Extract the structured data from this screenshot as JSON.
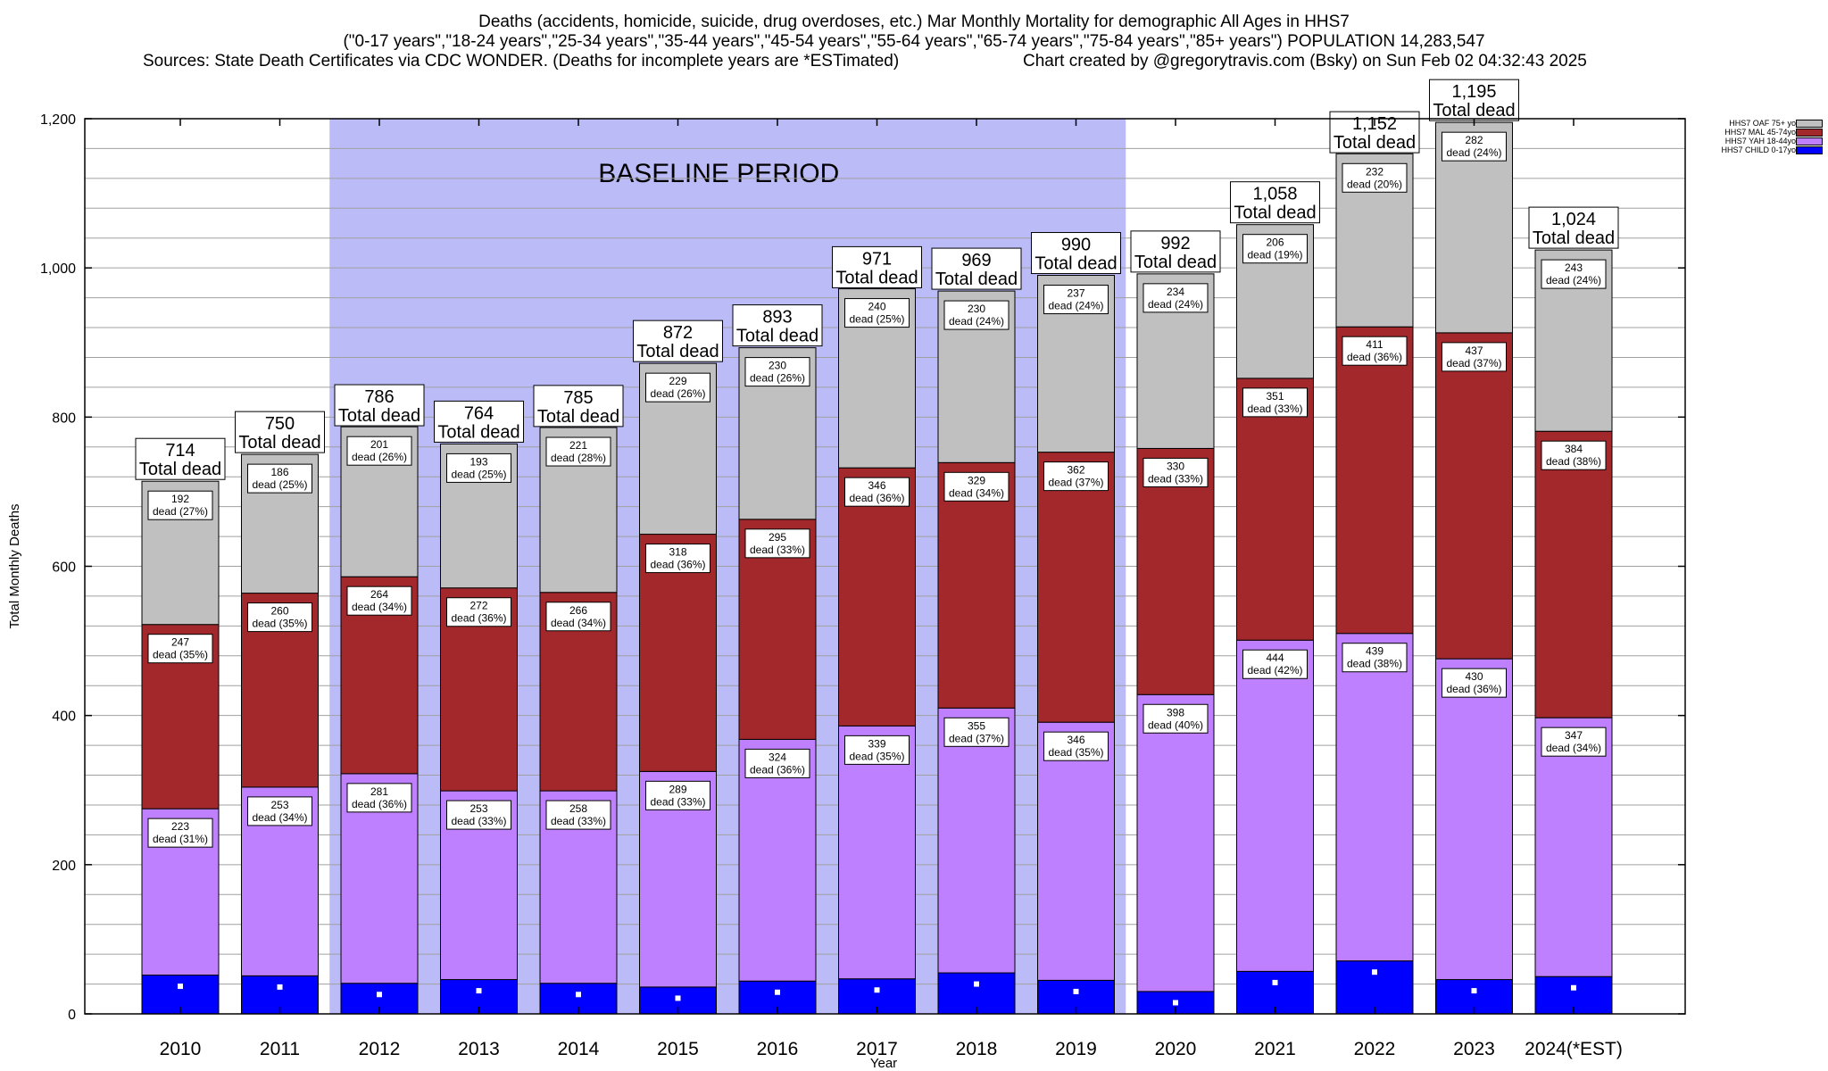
{
  "header": {
    "line1": "Deaths (accidents, homicide, suicide, drug overdoses, etc.) Mar Monthly Mortality for demographic All Ages in HHS7",
    "line2": "(\"0-17 years\",\"18-24 years\",\"25-34 years\",\"35-44 years\",\"45-54 years\",\"55-64 years\",\"65-74 years\",\"75-84 years\",\"85+ years\") POPULATION 14,283,547",
    "line3_left": "Sources: State Death Certificates via CDC WONDER. (Deaths for incomplete years are *ESTimated)",
    "line3_right": "Chart created by @gregorytravis.com (Bsky) on Sun Feb 02 04:32:43 2025"
  },
  "chart_data": {
    "type": "bar",
    "stacked": true,
    "xlabel": "Year",
    "ylabel": "Total Monthly Deaths",
    "ylim": [
      0,
      1200
    ],
    "yticks": [
      0,
      200,
      400,
      600,
      800,
      1000,
      1200
    ],
    "ytick_labels": [
      "0",
      "200",
      "400",
      "600",
      "800",
      "1,000",
      "1,200"
    ],
    "grid": true,
    "legend_position": "top-right",
    "categories": [
      "2010",
      "2011",
      "2012",
      "2013",
      "2014",
      "2015",
      "2016",
      "2017",
      "2018",
      "2019",
      "2020",
      "2021",
      "2022",
      "2023",
      "2024(*EST)"
    ],
    "baseline_period": {
      "label": "BASELINE PERIOD",
      "start": "2012",
      "end": "2019",
      "color": "#bbbbf8"
    },
    "total_label_suffix": "Total dead",
    "segment_label_prefix": "dead",
    "totals": [
      714,
      750,
      786,
      764,
      785,
      872,
      893,
      971,
      969,
      990,
      992,
      1058,
      1152,
      1195,
      1024
    ],
    "total_labels": [
      "714",
      "750",
      "786",
      "764",
      "785",
      "872",
      "893",
      "971",
      "969",
      "990",
      "992",
      "1,058",
      "1,152",
      "1,195",
      "1,024"
    ],
    "series": [
      {
        "name": "HHS7 CHILD 0-17yo",
        "color": "#0000ff",
        "labeled": false,
        "values": [
          52,
          51,
          41,
          46,
          41,
          36,
          44,
          47,
          55,
          45,
          30,
          57,
          71,
          46,
          50
        ]
      },
      {
        "name": "HHS7 YAH 18-44yo",
        "color": "#bf80ff",
        "labeled": true,
        "values": [
          223,
          253,
          281,
          253,
          258,
          289,
          324,
          339,
          355,
          346,
          398,
          444,
          439,
          430,
          347
        ],
        "percents": [
          "31%",
          "34%",
          "36%",
          "33%",
          "33%",
          "33%",
          "36%",
          "35%",
          "37%",
          "35%",
          "40%",
          "42%",
          "38%",
          "36%",
          "34%"
        ]
      },
      {
        "name": "HHS7 MAL 45-74yo",
        "color": "#a3282b",
        "labeled": true,
        "values": [
          247,
          260,
          264,
          272,
          266,
          318,
          295,
          346,
          329,
          362,
          330,
          351,
          411,
          437,
          384
        ],
        "percents": [
          "35%",
          "35%",
          "34%",
          "36%",
          "34%",
          "36%",
          "33%",
          "36%",
          "34%",
          "37%",
          "33%",
          "33%",
          "36%",
          "37%",
          "38%"
        ]
      },
      {
        "name": "HHS7 OAF 75+ yo",
        "color": "#c0c0c0",
        "labeled": true,
        "values": [
          192,
          186,
          201,
          193,
          221,
          229,
          230,
          240,
          230,
          237,
          234,
          206,
          232,
          282,
          243
        ],
        "percents": [
          "27%",
          "25%",
          "26%",
          "25%",
          "28%",
          "26%",
          "26%",
          "25%",
          "24%",
          "24%",
          "24%",
          "19%",
          "20%",
          "24%",
          "24%"
        ]
      }
    ],
    "child_marker_values": [
      37,
      36,
      26,
      31,
      26,
      21,
      29,
      32,
      40,
      30,
      15,
      42,
      56,
      31,
      35
    ]
  }
}
